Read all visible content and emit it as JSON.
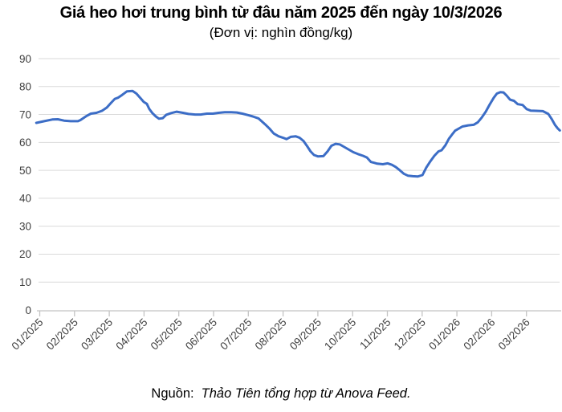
{
  "chart_data": {
    "type": "line",
    "title": "Giá heo hơi trung bình từ đâu năm 2025 đến ngày 10/3/2026",
    "subtitle": "(Đơn vị: nghìn đồng/kg)",
    "ylim": [
      0,
      90
    ],
    "y_ticks": [
      0,
      10,
      20,
      30,
      40,
      50,
      60,
      70,
      80,
      90
    ],
    "x_tick_labels": [
      "01/2025",
      "02/2025",
      "03/2025",
      "04/2025",
      "05/2025",
      "06/2025",
      "07/2025",
      "08/2025",
      "09/2025",
      "10/2025",
      "11/2025",
      "12/2025",
      "01/2026",
      "02/2026",
      "03/2026"
    ],
    "grid": true,
    "legend": "none",
    "line_color": "#3C6DC6",
    "grid_color": "#DADADA",
    "axis_color": "#C4C4C4",
    "label_color": "#404040",
    "points": [
      [
        0.9,
        67.0
      ],
      [
        1.13,
        67.6
      ],
      [
        1.36,
        68.2
      ],
      [
        1.52,
        68.3
      ],
      [
        1.7,
        67.8
      ],
      [
        1.89,
        67.6
      ],
      [
        2.1,
        67.6
      ],
      [
        2.17,
        68.0
      ],
      [
        2.35,
        69.5
      ],
      [
        2.47,
        70.3
      ],
      [
        2.63,
        70.6
      ],
      [
        2.79,
        71.3
      ],
      [
        2.93,
        72.5
      ],
      [
        3.04,
        74.0
      ],
      [
        3.16,
        75.6
      ],
      [
        3.25,
        76.0
      ],
      [
        3.37,
        77.0
      ],
      [
        3.51,
        78.3
      ],
      [
        3.67,
        78.4
      ],
      [
        3.78,
        77.5
      ],
      [
        3.9,
        75.8
      ],
      [
        3.99,
        74.5
      ],
      [
        4.08,
        73.8
      ],
      [
        4.15,
        72.0
      ],
      [
        4.24,
        70.5
      ],
      [
        4.34,
        69.3
      ],
      [
        4.43,
        68.5
      ],
      [
        4.54,
        68.7
      ],
      [
        4.64,
        69.9
      ],
      [
        4.78,
        70.5
      ],
      [
        4.94,
        71.0
      ],
      [
        5.12,
        70.6
      ],
      [
        5.28,
        70.2
      ],
      [
        5.47,
        70.0
      ],
      [
        5.63,
        70.0
      ],
      [
        5.81,
        70.3
      ],
      [
        5.98,
        70.3
      ],
      [
        6.14,
        70.6
      ],
      [
        6.32,
        70.8
      ],
      [
        6.51,
        70.8
      ],
      [
        6.67,
        70.7
      ],
      [
        6.83,
        70.3
      ],
      [
        6.99,
        69.8
      ],
      [
        7.13,
        69.3
      ],
      [
        7.29,
        68.6
      ],
      [
        7.48,
        66.5
      ],
      [
        7.62,
        64.8
      ],
      [
        7.73,
        63.2
      ],
      [
        7.87,
        62.2
      ],
      [
        7.99,
        61.7
      ],
      [
        8.1,
        61.2
      ],
      [
        8.22,
        62.0
      ],
      [
        8.36,
        62.2
      ],
      [
        8.47,
        61.7
      ],
      [
        8.59,
        60.5
      ],
      [
        8.7,
        58.5
      ],
      [
        8.79,
        56.8
      ],
      [
        8.89,
        55.5
      ],
      [
        9.0,
        55.0
      ],
      [
        9.16,
        55.1
      ],
      [
        9.28,
        56.8
      ],
      [
        9.39,
        58.8
      ],
      [
        9.51,
        59.5
      ],
      [
        9.63,
        59.3
      ],
      [
        9.74,
        58.5
      ],
      [
        9.88,
        57.5
      ],
      [
        10.02,
        56.5
      ],
      [
        10.16,
        55.8
      ],
      [
        10.3,
        55.2
      ],
      [
        10.41,
        54.6
      ],
      [
        10.53,
        53.0
      ],
      [
        10.62,
        52.7
      ],
      [
        10.71,
        52.4
      ],
      [
        10.87,
        52.2
      ],
      [
        11.01,
        52.5
      ],
      [
        11.13,
        52.0
      ],
      [
        11.24,
        51.2
      ],
      [
        11.36,
        50.0
      ],
      [
        11.47,
        48.8
      ],
      [
        11.59,
        48.1
      ],
      [
        11.73,
        47.9
      ],
      [
        11.87,
        47.8
      ],
      [
        12.01,
        48.3
      ],
      [
        12.12,
        51.0
      ],
      [
        12.24,
        53.3
      ],
      [
        12.35,
        55.2
      ],
      [
        12.47,
        56.8
      ],
      [
        12.56,
        57.2
      ],
      [
        12.67,
        59.0
      ],
      [
        12.77,
        61.3
      ],
      [
        12.86,
        62.8
      ],
      [
        12.95,
        64.2
      ],
      [
        13.16,
        65.7
      ],
      [
        13.32,
        66.1
      ],
      [
        13.48,
        66.3
      ],
      [
        13.6,
        67.2
      ],
      [
        13.71,
        68.8
      ],
      [
        13.83,
        71.0
      ],
      [
        13.94,
        73.5
      ],
      [
        14.06,
        76.0
      ],
      [
        14.15,
        77.5
      ],
      [
        14.25,
        78.0
      ],
      [
        14.34,
        77.9
      ],
      [
        14.43,
        76.8
      ],
      [
        14.53,
        75.3
      ],
      [
        14.64,
        74.9
      ],
      [
        14.75,
        73.7
      ],
      [
        14.89,
        73.4
      ],
      [
        15.01,
        71.9
      ],
      [
        15.12,
        71.4
      ],
      [
        15.28,
        71.3
      ],
      [
        15.47,
        71.2
      ],
      [
        15.63,
        70.2
      ],
      [
        15.72,
        68.5
      ],
      [
        15.82,
        66.3
      ],
      [
        15.9,
        65.0
      ],
      [
        15.96,
        64.3
      ]
    ]
  },
  "source": {
    "label": "Nguồn:",
    "text": "Thảo Tiên tổng hợp từ Anova Feed."
  }
}
